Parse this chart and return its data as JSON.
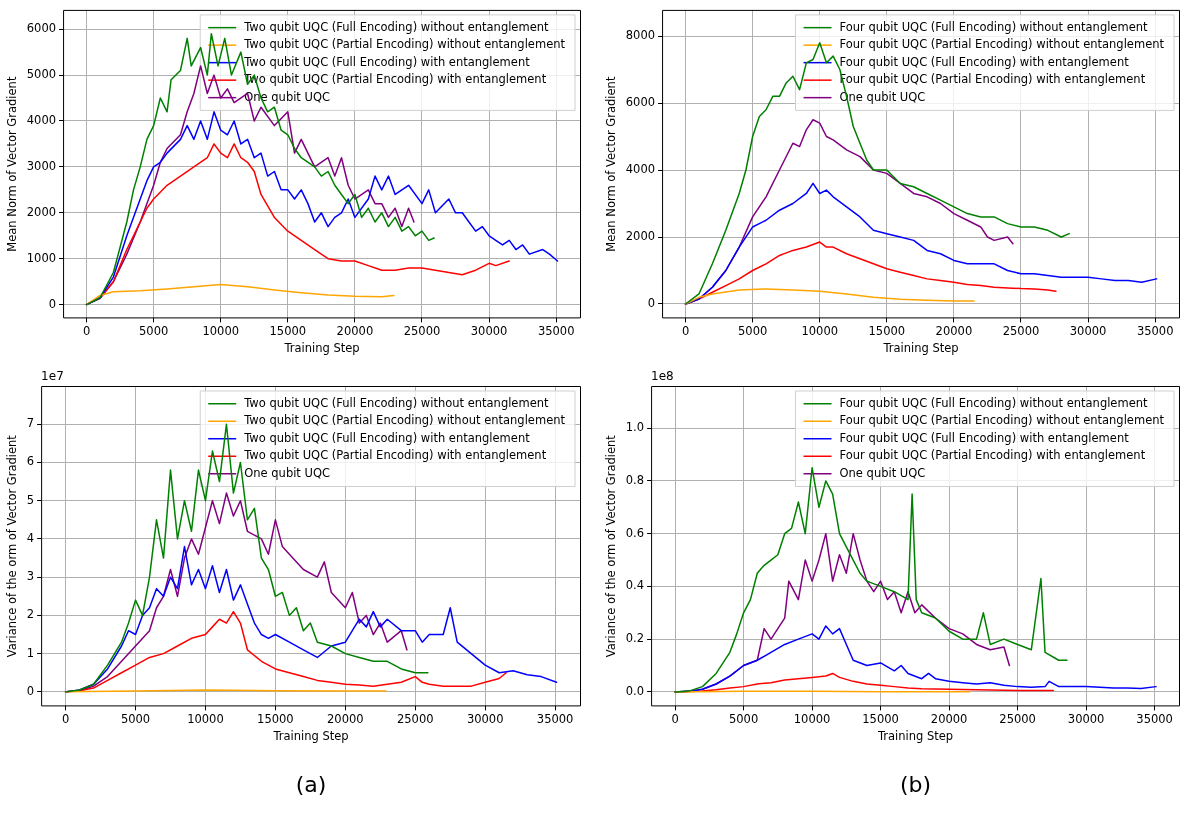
{
  "chart_data": [
    {
      "type": "line",
      "ylabel": "Mean Norm of Vector Gradient",
      "xlabel": "Training Step",
      "xlim": [
        -1750,
        36850
      ],
      "xticks": [
        0,
        5000,
        10000,
        15000,
        20000,
        25000,
        30000,
        35000
      ],
      "ylim": [
        -300,
        6420
      ],
      "yticks": [
        0,
        1000,
        2000,
        3000,
        4000,
        5000,
        6000
      ],
      "grid": true,
      "legend": "top right",
      "series": [
        {
          "name": "Two qubit UQC (Full Encoding) without entanglement",
          "color": "#008000",
          "x": [
            0,
            1000,
            2000,
            3000,
            3500,
            4000,
            4500,
            5000,
            5500,
            6000,
            6300,
            7000,
            7500,
            7800,
            8500,
            9000,
            9300,
            9800,
            10300,
            10800,
            11500,
            12000,
            12500,
            13000,
            13500,
            14000,
            14500,
            15000,
            15500,
            16000,
            17000,
            17500,
            18000,
            18500,
            19000,
            19500,
            20000,
            20500,
            21000,
            21500,
            22000,
            22500,
            23000,
            23500,
            24000,
            24500,
            25000,
            25500,
            25900
          ],
          "values": [
            0,
            150,
            700,
            1800,
            2500,
            3000,
            3600,
            3900,
            4500,
            4200,
            4900,
            5100,
            5800,
            5200,
            5600,
            5000,
            5900,
            5200,
            5800,
            5000,
            5500,
            4800,
            5000,
            4500,
            4200,
            4300,
            3800,
            3700,
            3400,
            3200,
            3000,
            2800,
            2900,
            2600,
            2400,
            2200,
            2400,
            1900,
            2100,
            1800,
            2000,
            1700,
            1900,
            1600,
            1700,
            1500,
            1600,
            1400,
            1450
          ]
        },
        {
          "name": "Two qubit UQC (Partial Encoding) without entanglement",
          "color": "#ffa500",
          "x": [
            0,
            1000,
            2000,
            4000,
            6000,
            8000,
            10000,
            12000,
            14000,
            16000,
            18000,
            20000,
            22000,
            22900
          ],
          "values": [
            0,
            200,
            280,
            300,
            340,
            390,
            440,
            390,
            320,
            260,
            210,
            180,
            170,
            200
          ]
        },
        {
          "name": "Two qubit UQC (Full Encoding) with entanglement",
          "color": "#0000ff",
          "x": [
            0,
            1000,
            2000,
            3000,
            4000,
            4500,
            5000,
            5500,
            6000,
            7000,
            7500,
            8000,
            8500,
            9000,
            9500,
            10000,
            10500,
            11000,
            11500,
            12000,
            12500,
            13000,
            13500,
            14000,
            14500,
            15000,
            15500,
            16000,
            16500,
            17000,
            17500,
            18000,
            18500,
            19000,
            19500,
            20000,
            21000,
            21500,
            22000,
            22500,
            23000,
            24000,
            25000,
            25500,
            26000,
            27000,
            27500,
            28000,
            28500,
            29000,
            29500,
            30000,
            30500,
            31000,
            31500,
            32000,
            32500,
            33000,
            34000,
            34500,
            35100
          ],
          "values": [
            0,
            150,
            600,
            1500,
            2300,
            2700,
            3000,
            3100,
            3300,
            3600,
            3900,
            3600,
            4000,
            3600,
            4200,
            3800,
            3700,
            4000,
            3500,
            3600,
            3200,
            3300,
            2800,
            2900,
            2500,
            2500,
            2300,
            2500,
            2200,
            1800,
            2000,
            1700,
            1900,
            2000,
            2300,
            1900,
            2300,
            2800,
            2500,
            2800,
            2400,
            2600,
            2200,
            2500,
            2000,
            2300,
            2000,
            2000,
            1800,
            1600,
            1700,
            1500,
            1400,
            1300,
            1400,
            1200,
            1300,
            1100,
            1200,
            1100,
            950
          ]
        },
        {
          "name": "Two qubit UQC (Partial Encoding) with entanglement",
          "color": "#ff0000",
          "x": [
            0,
            1000,
            2000,
            3000,
            4000,
            4500,
            5000,
            6000,
            7000,
            8000,
            9000,
            9500,
            10000,
            10500,
            11000,
            11500,
            12000,
            12500,
            13000,
            14000,
            15000,
            16000,
            17000,
            18000,
            19000,
            20000,
            21000,
            22000,
            23000,
            24000,
            25000,
            26000,
            27000,
            28000,
            29000,
            30000,
            30500,
            31500
          ],
          "values": [
            0,
            150,
            500,
            1200,
            1800,
            2100,
            2300,
            2600,
            2800,
            3000,
            3200,
            3500,
            3300,
            3200,
            3500,
            3200,
            3100,
            2900,
            2400,
            1900,
            1600,
            1400,
            1200,
            1000,
            950,
            950,
            850,
            750,
            750,
            800,
            800,
            750,
            700,
            650,
            750,
            900,
            850,
            950
          ]
        },
        {
          "name": "One qubit UQC",
          "color": "#800080",
          "x": [
            0,
            1000,
            2000,
            3000,
            4000,
            5000,
            5500,
            6000,
            7000,
            7500,
            8000,
            8500,
            9000,
            9500,
            10000,
            10500,
            11000,
            12000,
            12500,
            13000,
            14000,
            15000,
            15500,
            16000,
            17000,
            18000,
            18500,
            19000,
            19500,
            20000,
            21000,
            21500,
            22000,
            22500,
            23000,
            23500,
            24000,
            24400
          ],
          "values": [
            0,
            130,
            500,
            1100,
            1800,
            2600,
            3100,
            3400,
            3700,
            4200,
            4600,
            5200,
            4600,
            5000,
            4500,
            4700,
            4400,
            4600,
            4000,
            4300,
            3900,
            4200,
            3300,
            3600,
            3000,
            3200,
            2800,
            3200,
            2600,
            2300,
            2500,
            2200,
            2200,
            1900,
            2100,
            1700,
            2100,
            1800
          ]
        }
      ]
    },
    {
      "type": "line",
      "ylabel": "Mean Norm of Vector Gradient",
      "xlabel": "Training Step",
      "xlim": [
        -1750,
        36850
      ],
      "xticks": [
        0,
        5000,
        10000,
        15000,
        20000,
        25000,
        30000,
        35000
      ],
      "ylim": [
        -430,
        8780
      ],
      "yticks": [
        0,
        2000,
        4000,
        6000,
        8000
      ],
      "grid": true,
      "legend": "top right",
      "series": [
        {
          "name": "Four qubit UQC (Full Encoding) without entanglement",
          "color": "#008000",
          "x": [
            0,
            1000,
            2000,
            3000,
            4000,
            4500,
            5000,
            5500,
            6000,
            6500,
            7000,
            7500,
            8000,
            8500,
            9000,
            9500,
            10000,
            10500,
            11000,
            11500,
            12000,
            12500,
            13000,
            13500,
            14000,
            15000,
            16000,
            17000,
            18000,
            19000,
            20000,
            21000,
            22000,
            23000,
            24000,
            25000,
            26000,
            27000,
            28000,
            28600
          ],
          "values": [
            0,
            300,
            1200,
            2200,
            3300,
            4000,
            5000,
            5600,
            5800,
            6200,
            6200,
            6600,
            6800,
            6400,
            7200,
            7300,
            7800,
            7200,
            7400,
            7000,
            6200,
            5300,
            4800,
            4300,
            4000,
            4000,
            3600,
            3500,
            3300,
            3100,
            2900,
            2700,
            2600,
            2600,
            2400,
            2300,
            2300,
            2200,
            2000,
            2100
          ]
        },
        {
          "name": "Four qubit UQC (Partial Encoding) without entanglement",
          "color": "#ffa500",
          "x": [
            0,
            1000,
            2000,
            4000,
            6000,
            8000,
            10000,
            12000,
            14000,
            16000,
            18000,
            20000,
            21500
          ],
          "values": [
            0,
            200,
            300,
            420,
            450,
            420,
            380,
            300,
            200,
            140,
            110,
            90,
            90
          ]
        },
        {
          "name": "Four qubit UQC (Full Encoding) with entanglement",
          "color": "#0000ff",
          "x": [
            0,
            1000,
            2000,
            3000,
            4000,
            5000,
            6000,
            7000,
            8000,
            9000,
            9500,
            10000,
            10500,
            11000,
            12000,
            13000,
            14000,
            15000,
            16000,
            17000,
            18000,
            19000,
            20000,
            21000,
            22000,
            23000,
            24000,
            25000,
            26000,
            27000,
            28000,
            29000,
            30000,
            31000,
            32000,
            33000,
            34000,
            35100
          ],
          "values": [
            0,
            150,
            500,
            1000,
            1700,
            2300,
            2500,
            2800,
            3000,
            3300,
            3600,
            3300,
            3400,
            3200,
            2900,
            2600,
            2200,
            2100,
            2000,
            1900,
            1600,
            1500,
            1300,
            1200,
            1200,
            1200,
            1000,
            900,
            900,
            850,
            800,
            800,
            800,
            750,
            700,
            700,
            650,
            750
          ]
        },
        {
          "name": "Four qubit UQC (Partial Encoding) with entanglement",
          "color": "#ff0000",
          "x": [
            0,
            1000,
            2000,
            3000,
            4000,
            5000,
            6000,
            7000,
            8000,
            9000,
            10000,
            10500,
            11000,
            12000,
            13000,
            14000,
            15000,
            16000,
            17000,
            18000,
            19000,
            20000,
            21000,
            22000,
            23000,
            24000,
            25000,
            26000,
            27000,
            27600
          ],
          "values": [
            0,
            150,
            350,
            550,
            750,
            1000,
            1200,
            1450,
            1600,
            1700,
            1850,
            1700,
            1700,
            1500,
            1350,
            1200,
            1050,
            950,
            850,
            750,
            700,
            650,
            580,
            550,
            500,
            480,
            460,
            450,
            420,
            380
          ]
        },
        {
          "name": "One qubit UQC",
          "color": "#800080",
          "x": [
            0,
            1000,
            2000,
            3000,
            4000,
            5000,
            6000,
            7000,
            8000,
            8500,
            9000,
            9500,
            10000,
            10500,
            11000,
            12000,
            13000,
            14000,
            15000,
            16000,
            17000,
            18000,
            19000,
            20000,
            21000,
            22000,
            22500,
            23000,
            24000,
            24400
          ],
          "values": [
            0,
            150,
            500,
            1000,
            1700,
            2600,
            3200,
            4000,
            4800,
            4700,
            5200,
            5500,
            5400,
            5000,
            4900,
            4600,
            4400,
            4000,
            3900,
            3600,
            3300,
            3200,
            3000,
            2700,
            2500,
            2300,
            2000,
            1900,
            2000,
            1800
          ]
        }
      ]
    },
    {
      "type": "line",
      "ylabel": "Variance of the orm of Vector Gradient",
      "xlabel": "Training Step",
      "annotations": [
        "1e7",
        "(a)"
      ],
      "xlim": [
        -1750,
        36850
      ],
      "xticks": [
        0,
        5000,
        10000,
        15000,
        20000,
        25000,
        30000,
        35000
      ],
      "ylim": [
        -0.38,
        8.0
      ],
      "yticks": [
        0,
        1,
        2,
        3,
        4,
        5,
        6,
        7
      ],
      "grid": true,
      "legend": "top right",
      "series": [
        {
          "name": "Two qubit UQC (Full Encoding) without entanglement",
          "color": "#008000",
          "x": [
            0,
            1000,
            2000,
            3000,
            4000,
            4500,
            5000,
            5500,
            6000,
            6500,
            7000,
            7500,
            8000,
            8500,
            9000,
            9500,
            10000,
            10500,
            11000,
            11500,
            12000,
            12500,
            13000,
            13500,
            14000,
            14500,
            15000,
            15500,
            16000,
            16500,
            17000,
            17500,
            18000,
            19000,
            20000,
            21000,
            22000,
            23000,
            24000,
            25000,
            25900
          ],
          "values": [
            0,
            0.05,
            0.2,
            0.7,
            1.3,
            1.8,
            2.4,
            2.0,
            3.0,
            4.5,
            3.5,
            5.8,
            4.0,
            5.0,
            4.2,
            5.8,
            5.0,
            6.3,
            5.5,
            7.0,
            5.2,
            6.0,
            4.5,
            4.8,
            3.5,
            3.2,
            2.5,
            2.6,
            2.0,
            2.2,
            1.6,
            1.8,
            1.3,
            1.2,
            1.0,
            0.9,
            0.8,
            0.8,
            0.6,
            0.5,
            0.5
          ]
        },
        {
          "name": "Two qubit UQC (Partial Encoding) without entanglement",
          "color": "#ffa500",
          "x": [
            0,
            5000,
            10000,
            15000,
            20000,
            22900
          ],
          "values": [
            0,
            0.02,
            0.05,
            0.03,
            0.02,
            0.02
          ]
        },
        {
          "name": "Two qubit UQC (Full Encoding) with entanglement",
          "color": "#0000ff",
          "x": [
            0,
            1000,
            2000,
            3000,
            4000,
            4500,
            5000,
            5500,
            6000,
            6500,
            7000,
            7500,
            8000,
            8500,
            9000,
            9500,
            10000,
            10500,
            11000,
            11500,
            12000,
            12500,
            13000,
            13500,
            14000,
            14500,
            15000,
            16000,
            17000,
            18000,
            19000,
            20000,
            20500,
            21000,
            21500,
            22000,
            22500,
            23000,
            24000,
            25000,
            25500,
            26000,
            27000,
            27500,
            28000,
            29000,
            30000,
            31000,
            32000,
            33000,
            34000,
            35100
          ],
          "values": [
            0,
            0.05,
            0.2,
            0.6,
            1.2,
            1.6,
            1.5,
            2.0,
            2.2,
            2.7,
            2.5,
            3.0,
            2.7,
            3.8,
            2.8,
            3.2,
            2.7,
            3.3,
            2.6,
            3.2,
            2.4,
            2.8,
            2.3,
            1.8,
            1.5,
            1.4,
            1.5,
            1.3,
            1.1,
            0.9,
            1.2,
            1.3,
            1.6,
            1.9,
            1.7,
            2.1,
            1.7,
            1.9,
            1.6,
            1.6,
            1.3,
            1.5,
            1.5,
            2.2,
            1.3,
            1.0,
            0.7,
            0.5,
            0.55,
            0.45,
            0.4,
            0.25
          ]
        },
        {
          "name": "Two qubit UQC (Partial Encoding) with entanglement",
          "color": "#ff0000",
          "x": [
            0,
            1000,
            2000,
            3000,
            4000,
            5000,
            6000,
            7000,
            8000,
            9000,
            10000,
            10500,
            11000,
            11500,
            12000,
            12500,
            13000,
            14000,
            15000,
            16000,
            17000,
            18000,
            19000,
            20000,
            21000,
            22000,
            23000,
            24000,
            25000,
            25500,
            26000,
            27000,
            28000,
            29000,
            30000,
            31000,
            31500
          ],
          "values": [
            0,
            0.03,
            0.1,
            0.3,
            0.5,
            0.7,
            0.9,
            1.0,
            1.2,
            1.4,
            1.5,
            1.7,
            1.9,
            1.8,
            2.1,
            1.8,
            1.1,
            0.8,
            0.6,
            0.5,
            0.4,
            0.3,
            0.25,
            0.2,
            0.18,
            0.15,
            0.2,
            0.25,
            0.4,
            0.25,
            0.2,
            0.15,
            0.15,
            0.15,
            0.25,
            0.35,
            0.5
          ]
        },
        {
          "name": "One qubit UQC",
          "color": "#800080",
          "x": [
            0,
            1000,
            2000,
            3000,
            4000,
            5000,
            6000,
            6500,
            7000,
            7500,
            8000,
            8500,
            9000,
            9500,
            10000,
            10500,
            11000,
            11500,
            12000,
            12500,
            13000,
            14000,
            14500,
            15000,
            15500,
            16000,
            17000,
            18000,
            18500,
            19000,
            20000,
            20500,
            21000,
            21500,
            22000,
            22500,
            23000,
            24000,
            24400
          ],
          "values": [
            0,
            0.03,
            0.15,
            0.4,
            0.8,
            1.2,
            1.6,
            2.2,
            2.5,
            3.2,
            2.5,
            3.5,
            4.0,
            3.6,
            4.3,
            5.0,
            4.4,
            5.2,
            4.6,
            5.0,
            4.2,
            4.0,
            3.6,
            4.5,
            3.8,
            3.6,
            3.2,
            3.0,
            3.4,
            2.6,
            2.2,
            2.6,
            1.8,
            2.0,
            1.5,
            1.8,
            1.3,
            1.6,
            1.1
          ]
        }
      ]
    },
    {
      "type": "line",
      "ylabel": "Variance of the orm of Vector Gradient",
      "xlabel": "Training Step",
      "annotations": [
        "1e8",
        "(b)"
      ],
      "xlim": [
        -1750,
        36850
      ],
      "xticks": [
        0,
        5000,
        10000,
        15000,
        20000,
        25000,
        30000,
        35000
      ],
      "ylim": [
        -0.055,
        1.16
      ],
      "yticks": [
        {
          "value": 0,
          "label": "0.0"
        },
        {
          "value": 0.2,
          "label": "0.2"
        },
        {
          "value": 0.4,
          "label": "0.4"
        },
        {
          "value": 0.6,
          "label": "0.6"
        },
        {
          "value": 0.8,
          "label": "0.8"
        },
        {
          "value": 1.0,
          "label": "1.0"
        }
      ],
      "grid": true,
      "legend": "top right",
      "series": [
        {
          "name": "Four qubit UQC (Full Encoding) without entanglement",
          "color": "#008000",
          "x": [
            0,
            1000,
            2000,
            3000,
            4000,
            4500,
            5000,
            5500,
            6000,
            6500,
            7000,
            7500,
            8000,
            8500,
            9000,
            9500,
            10000,
            10500,
            11000,
            11500,
            12000,
            12500,
            13000,
            13500,
            14000,
            15000,
            16000,
            17000,
            17300,
            17600,
            18000,
            19000,
            20000,
            21000,
            22000,
            22500,
            23000,
            24000,
            25000,
            26000,
            26700,
            27000,
            28000,
            28600
          ],
          "values": [
            0,
            0.003,
            0.02,
            0.07,
            0.15,
            0.22,
            0.3,
            0.35,
            0.45,
            0.48,
            0.5,
            0.52,
            0.6,
            0.62,
            0.72,
            0.6,
            0.85,
            0.7,
            0.8,
            0.75,
            0.6,
            0.55,
            0.5,
            0.45,
            0.42,
            0.4,
            0.38,
            0.35,
            0.75,
            0.35,
            0.3,
            0.28,
            0.23,
            0.2,
            0.2,
            0.3,
            0.18,
            0.2,
            0.18,
            0.16,
            0.43,
            0.15,
            0.12,
            0.12
          ]
        },
        {
          "name": "Four qubit UQC (Partial Encoding) without entanglement",
          "color": "#ffa500",
          "x": [
            0,
            5000,
            10000,
            15000,
            21500
          ],
          "values": [
            0,
            0.002,
            0.002,
            0.001,
            0.001
          ]
        },
        {
          "name": "Four qubit UQC (Full Encoding) with entanglement",
          "color": "#0000ff",
          "x": [
            0,
            1000,
            2000,
            3000,
            4000,
            5000,
            6000,
            7000,
            8000,
            9000,
            10000,
            10500,
            11000,
            11500,
            12000,
            12500,
            13000,
            14000,
            15000,
            16000,
            16500,
            17000,
            18000,
            18500,
            19000,
            20000,
            21000,
            22000,
            23000,
            24000,
            25000,
            26000,
            27000,
            27300,
            28000,
            29000,
            30000,
            31000,
            32000,
            33000,
            34000,
            35100
          ],
          "values": [
            0,
            0.002,
            0.01,
            0.03,
            0.06,
            0.1,
            0.12,
            0.15,
            0.18,
            0.2,
            0.22,
            0.2,
            0.25,
            0.22,
            0.24,
            0.18,
            0.12,
            0.1,
            0.11,
            0.08,
            0.1,
            0.07,
            0.05,
            0.07,
            0.05,
            0.04,
            0.035,
            0.03,
            0.035,
            0.025,
            0.02,
            0.018,
            0.02,
            0.04,
            0.02,
            0.02,
            0.02,
            0.018,
            0.015,
            0.015,
            0.013,
            0.02
          ]
        },
        {
          "name": "Four qubit UQC (Partial Encoding) with entanglement",
          "color": "#ff0000",
          "x": [
            0,
            2000,
            3000,
            4000,
            5000,
            6000,
            7000,
            8000,
            9000,
            10000,
            11000,
            11500,
            12000,
            13000,
            14000,
            15000,
            16000,
            17000,
            18000,
            20000,
            22000,
            24000,
            26000,
            27600
          ],
          "values": [
            0,
            0.003,
            0.008,
            0.015,
            0.02,
            0.03,
            0.035,
            0.045,
            0.05,
            0.055,
            0.06,
            0.07,
            0.055,
            0.04,
            0.03,
            0.025,
            0.02,
            0.015,
            0.012,
            0.01,
            0.008,
            0.006,
            0.005,
            0.005
          ]
        },
        {
          "name": "One qubit UQC",
          "color": "#800080",
          "x": [
            0,
            1000,
            2000,
            3000,
            4000,
            5000,
            6000,
            6500,
            7000,
            8000,
            8300,
            9000,
            9500,
            10000,
            10500,
            11000,
            11500,
            12000,
            12500,
            13000,
            13500,
            14000,
            14500,
            15000,
            15500,
            16000,
            16500,
            17000,
            17500,
            18000,
            19000,
            20000,
            21000,
            22000,
            23000,
            24000,
            24400
          ],
          "values": [
            0,
            0.002,
            0.01,
            0.03,
            0.06,
            0.1,
            0.12,
            0.24,
            0.2,
            0.28,
            0.42,
            0.35,
            0.5,
            0.42,
            0.5,
            0.6,
            0.42,
            0.52,
            0.45,
            0.6,
            0.5,
            0.42,
            0.38,
            0.42,
            0.35,
            0.38,
            0.3,
            0.38,
            0.3,
            0.33,
            0.28,
            0.24,
            0.22,
            0.18,
            0.16,
            0.17,
            0.1
          ]
        }
      ]
    }
  ]
}
